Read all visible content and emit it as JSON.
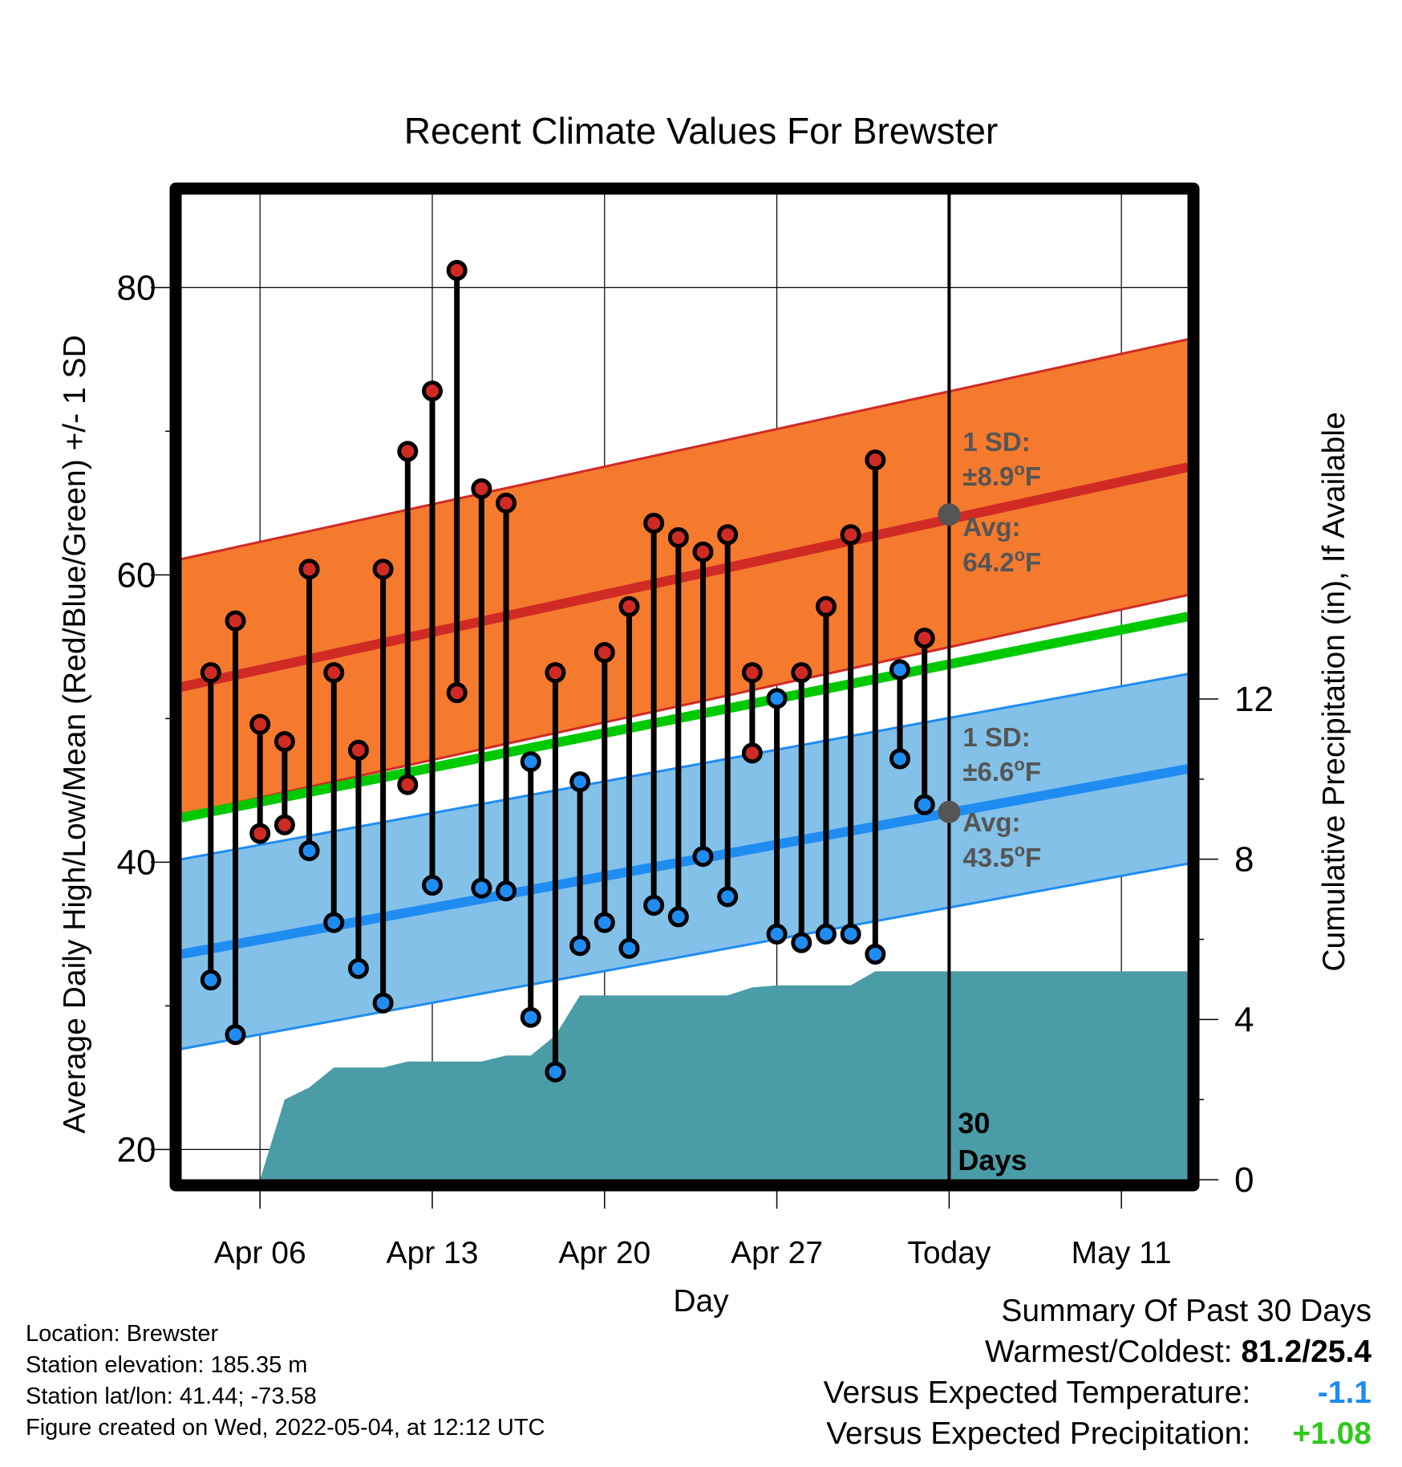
{
  "chart_data": {
    "type": "range-line",
    "title": "Recent Climate Values For Brewster",
    "xlabel": "Day",
    "ylabel": "Average Daily High/Low/Mean (Red/Blue/Green) +/- 1 SD",
    "y2label": "Cumulative Precipitation (in), If Available",
    "ylim": [
      17.9,
      86.5
    ],
    "y2lim": [
      0,
      24.6
    ],
    "yticks": [
      "20",
      "40",
      "60",
      "80"
    ],
    "y2ticks": [
      "0",
      "4",
      "8",
      "12"
    ],
    "xticks": [
      "Apr 06",
      "Apr 13",
      "Apr 20",
      "Apr 27",
      "Today",
      "May 11"
    ],
    "xtick_days": [
      6,
      13,
      20,
      27,
      34,
      41
    ],
    "xlim": [
      2.8,
      43.7
    ],
    "grid": true,
    "today_day": 34,
    "today_label": "30 Days",
    "days": [
      4,
      5,
      6,
      7,
      8,
      9,
      10,
      11,
      12,
      13,
      14,
      15,
      16,
      17,
      18,
      19,
      20,
      21,
      22,
      23,
      24,
      25,
      26,
      27,
      28,
      29,
      30,
      31,
      32,
      33
    ],
    "highs": [
      53.2,
      56.8,
      49.6,
      48.4,
      60.4,
      53.2,
      47.8,
      60.4,
      68.6,
      72.8,
      81.2,
      66.0,
      65.0,
      47.0,
      53.2,
      45.6,
      54.6,
      57.8,
      63.6,
      62.6,
      61.6,
      62.8,
      53.2,
      51.4,
      53.2,
      57.8,
      62.8,
      68.0,
      53.4,
      55.6
    ],
    "lows": [
      31.8,
      28.0,
      42.0,
      42.6,
      40.8,
      35.8,
      32.6,
      30.2,
      45.4,
      38.4,
      51.8,
      38.2,
      38.0,
      29.2,
      25.4,
      34.2,
      35.8,
      34.0,
      37.0,
      36.2,
      40.4,
      37.6,
      47.6,
      35.0,
      34.4,
      35.0,
      35.0,
      33.6,
      47.2,
      44.0
    ],
    "normal_high": {
      "start": 52.2,
      "today": 64.2,
      "end": 67.5,
      "sd": "±8.9°F",
      "avg": "64.2°F"
    },
    "normal_low": {
      "start": 33.6,
      "today": 43.5,
      "end": 46.5,
      "sd": "±6.6°F",
      "avg": "43.5°F"
    },
    "normal_mean": {
      "start": 43.1,
      "end": 57.1
    },
    "sd_labels": {
      "sd": "1 SD:",
      "avg": "Avg:"
    },
    "precip": {
      "days": [
        3.2,
        6.0,
        7.0,
        8.0,
        9.0,
        10.0,
        11.0,
        12.0,
        13.0,
        14.0,
        15.0,
        16.0,
        17.0,
        18.0,
        19.0,
        20.0,
        21.0,
        22.0,
        23.0,
        24.0,
        25.0,
        26.0,
        27.0,
        28.0,
        29.0,
        30.0,
        31.0,
        32.0,
        33.0,
        34.0,
        43.7
      ],
      "cumulative": [
        0.0,
        0.0,
        2.0,
        2.3,
        2.8,
        2.8,
        2.8,
        2.95,
        2.95,
        2.95,
        2.95,
        3.1,
        3.1,
        3.6,
        4.6,
        4.6,
        4.6,
        4.6,
        4.6,
        4.6,
        4.6,
        4.8,
        4.85,
        4.85,
        4.85,
        4.85,
        5.2,
        5.2,
        5.2,
        5.2,
        5.2
      ]
    },
    "colors": {
      "high": "#d02a25",
      "low": "#1f8cf2",
      "mean": "#00c900",
      "high_band": "#f57a2e",
      "low_band": "#83c1e8",
      "precip": "#4a9ca6",
      "label_gray": "#555555"
    }
  },
  "footer": {
    "location": "Location: Brewster",
    "elevation": "Station elevation: 185.35 m",
    "latlon": "Station lat/lon: 41.44; -73.58",
    "created": "Figure created on Wed, 2022-05-04, at 12:12 UTC"
  },
  "summary": {
    "title": "Summary Of Past 30 Days",
    "warmest_label": "Warmest/Coldest:",
    "warmest_value": "81.2/25.4",
    "temp_label": "Versus Expected Temperature:",
    "temp_value": "-1.1",
    "precip_label": "Versus Expected Precipitation:",
    "precip_value": "+1.08",
    "temp_color": "#1f8cf2",
    "precip_color": "#2ec81e"
  }
}
